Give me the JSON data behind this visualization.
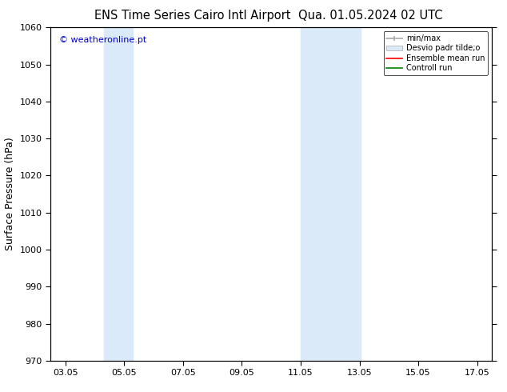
{
  "title_left": "ENS Time Series Cairo Intl Airport",
  "title_right": "Qua. 01.05.2024 02 UTC",
  "ylabel": "Surface Pressure (hPa)",
  "ylim": [
    970,
    1060
  ],
  "yticks": [
    970,
    980,
    990,
    1000,
    1010,
    1020,
    1030,
    1040,
    1050,
    1060
  ],
  "xlim": [
    2.5,
    17.5
  ],
  "xtick_labels": [
    "03.05",
    "05.05",
    "07.05",
    "09.05",
    "11.05",
    "13.05",
    "15.05",
    "17.05"
  ],
  "xtick_positions": [
    3,
    5,
    7,
    9,
    11,
    13,
    15,
    17
  ],
  "shaded_bands": [
    {
      "x_start": 4.3,
      "x_end": 5.3
    },
    {
      "x_start": 11.0,
      "x_end": 12.0
    },
    {
      "x_start": 12.0,
      "x_end": 13.05
    }
  ],
  "shade_color": "#daeaf8",
  "background_color": "#ffffff",
  "plot_bg_color": "#ffffff",
  "watermark": "© weatheronline.pt",
  "watermark_color": "#0000cc",
  "legend_items": [
    {
      "label": "min/max",
      "color": "#aaaaaa",
      "type": "line_with_bars"
    },
    {
      "label": "Desvio padr tilde;o",
      "color": "#cccccc",
      "type": "fill"
    },
    {
      "label": "Ensemble mean run",
      "color": "#ff0000",
      "type": "line"
    },
    {
      "label": "Controll run",
      "color": "#008000",
      "type": "line"
    }
  ],
  "title_fontsize": 10.5,
  "ylabel_fontsize": 9,
  "tick_fontsize": 8,
  "watermark_fontsize": 8,
  "legend_fontsize": 7
}
